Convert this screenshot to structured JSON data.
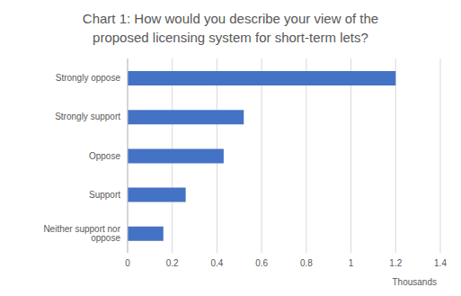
{
  "chart_data": {
    "type": "bar",
    "title": "Chart 1: How would you describe your view of the proposed licensing system for short-term lets?",
    "orientation": "horizontal",
    "categories": [
      "Strongly oppose",
      "Strongly support",
      "Oppose",
      "Support",
      "Neither support nor oppose"
    ],
    "values": [
      1.2,
      0.52,
      0.43,
      0.26,
      0.16
    ],
    "color": "#4472c4",
    "xlim": [
      0,
      1.4
    ],
    "xticks": [
      0,
      0.2,
      0.4,
      0.6,
      0.8,
      1,
      1.2,
      1.4
    ],
    "xlabel": "Thousands",
    "grid": true
  }
}
